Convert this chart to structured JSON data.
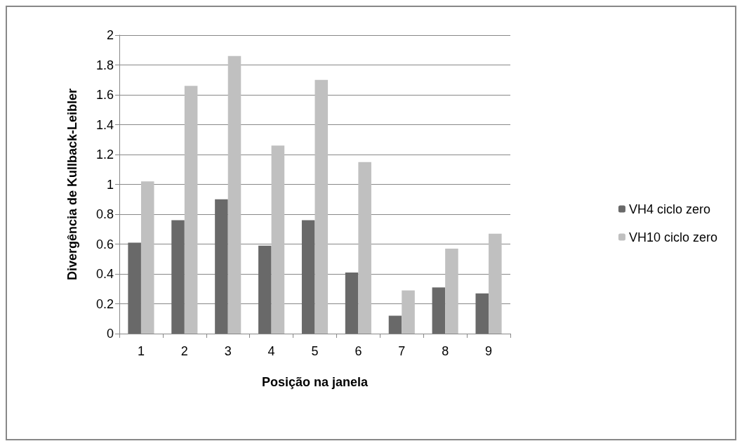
{
  "chart_data": {
    "type": "bar",
    "xlabel": "Posição na janela",
    "ylabel": "Divergência de Kullback-Leibler",
    "categories": [
      "1",
      "2",
      "3",
      "4",
      "5",
      "6",
      "7",
      "8",
      "9"
    ],
    "series": [
      {
        "name": "VH4 ciclo zero",
        "color": "#696969",
        "values": [
          0.61,
          0.76,
          0.9,
          0.59,
          0.76,
          0.41,
          0.12,
          0.31,
          0.27
        ]
      },
      {
        "name": "VH10 ciclo zero",
        "color": "#c0c0c0",
        "values": [
          1.02,
          1.66,
          1.86,
          1.26,
          1.7,
          1.15,
          0.29,
          0.57,
          0.67
        ]
      }
    ],
    "ylim": [
      0,
      2
    ],
    "yticks": [
      0,
      0.2,
      0.4,
      0.6,
      0.8,
      1,
      1.2,
      1.4,
      1.6,
      1.8,
      2
    ],
    "grid": "y",
    "legend": "right"
  }
}
